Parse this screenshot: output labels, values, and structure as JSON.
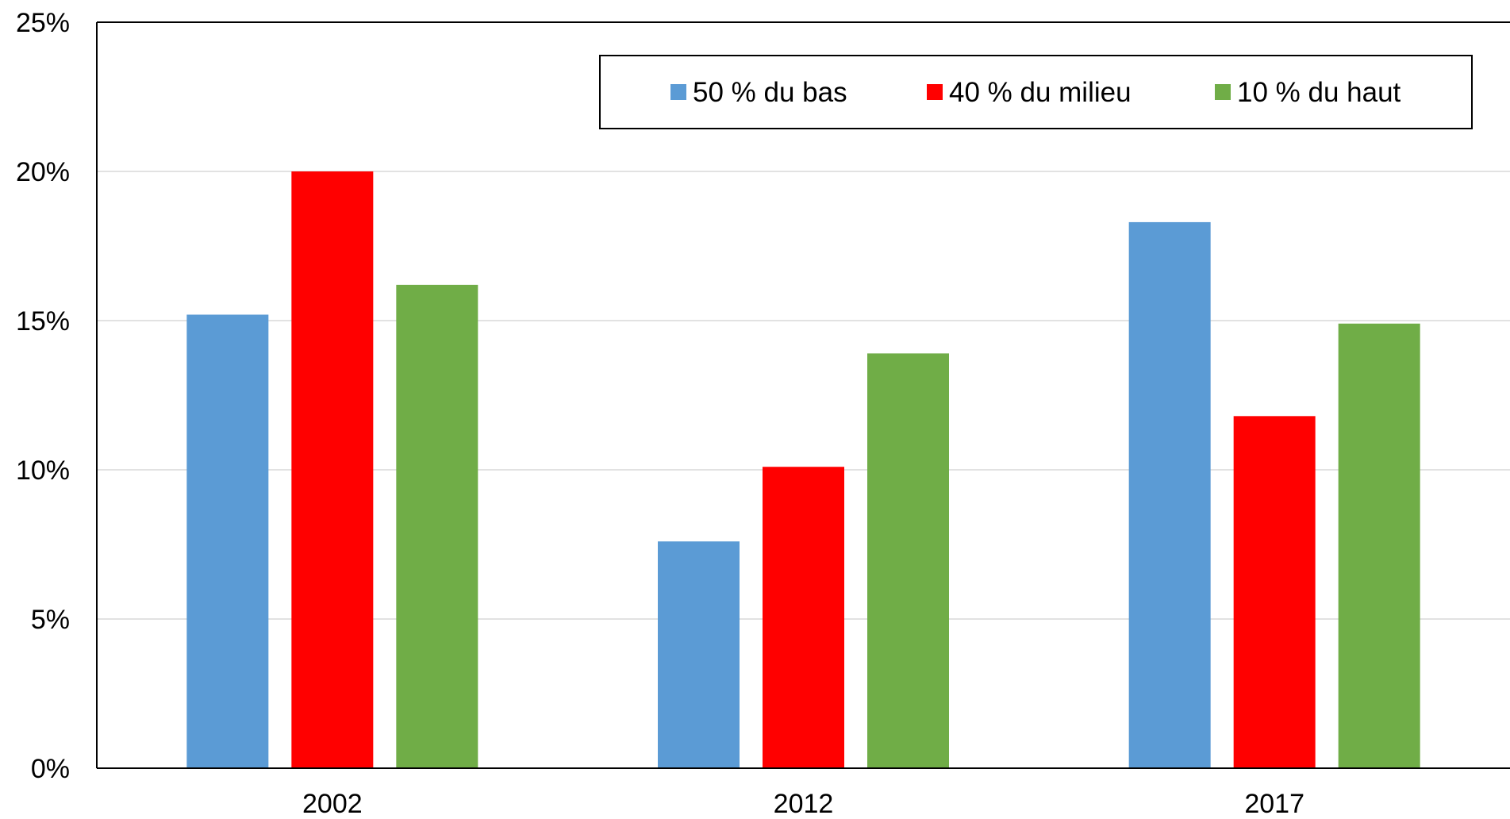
{
  "chart_data": {
    "type": "bar",
    "categories": [
      "2002",
      "2012",
      "2017"
    ],
    "series": [
      {
        "name": "50 % du bas",
        "color": "#5b9bd5",
        "values": [
          15.2,
          7.6,
          18.3
        ]
      },
      {
        "name": "40 % du milieu",
        "color": "#ff0000",
        "values": [
          20.0,
          10.1,
          11.8
        ]
      },
      {
        "name": "10 % du haut",
        "color": "#70ad47",
        "values": [
          16.2,
          13.9,
          14.9
        ]
      }
    ],
    "ylim": [
      0,
      25
    ],
    "yticks": [
      0,
      5,
      10,
      15,
      20,
      25
    ],
    "ytick_labels": [
      "0%",
      "5%",
      "10%",
      "15%",
      "20%",
      "25%"
    ],
    "grid": true,
    "legend": {
      "placement": "top-right",
      "boxed": true
    },
    "title": "",
    "xlabel": "",
    "ylabel": ""
  }
}
